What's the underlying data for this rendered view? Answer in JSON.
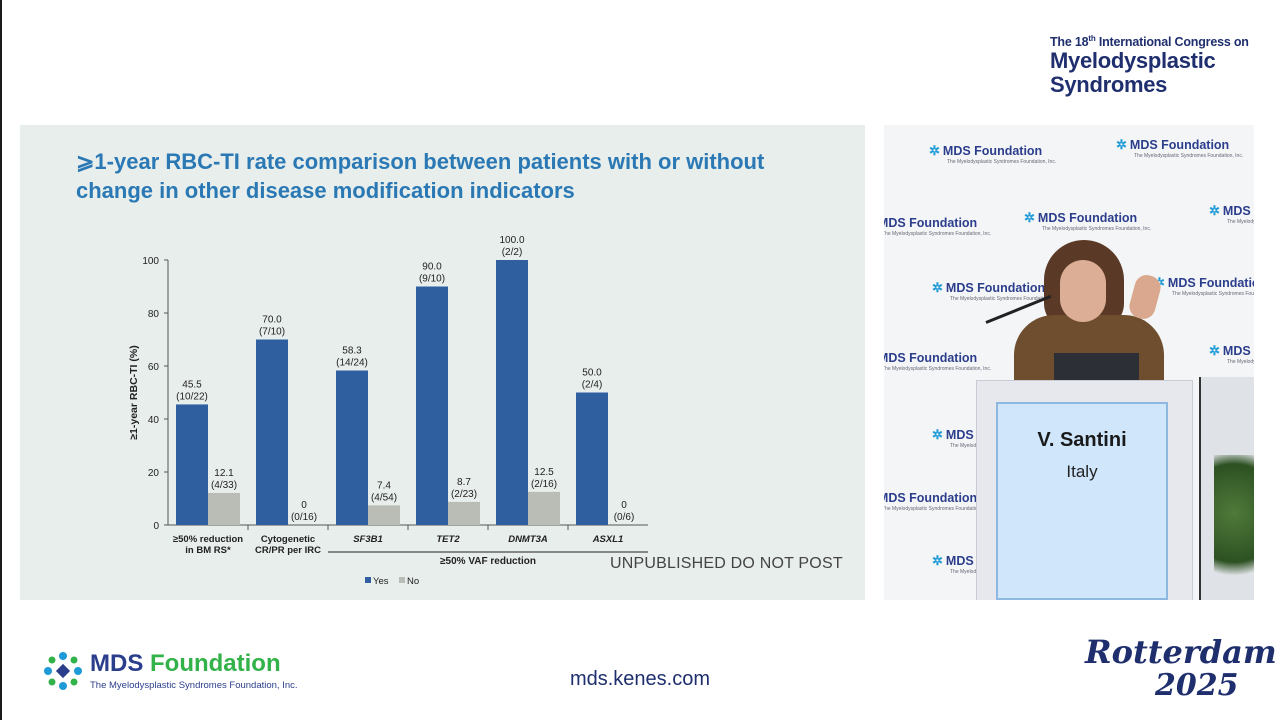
{
  "congress": {
    "line1_pre": "The 18",
    "line1_sup": "th",
    "line1_post": " International Congress on",
    "line2": "Myelodysplastic",
    "line3": "Syndromes"
  },
  "slide": {
    "title": "⩾1-year RBC-TI rate comparison between patients with or without change in other disease modification indicators",
    "watermark": "UNPUBLISHED DO NOT POST"
  },
  "chart_data": {
    "type": "bar",
    "ylabel": "≥1-year RBC-TI (%)",
    "ylim": [
      0,
      100
    ],
    "yticks": [
      0,
      20,
      40,
      60,
      80,
      100
    ],
    "categories": [
      "≥50% reduction\nin BM RS*",
      "Cytogenetic\nCR/PR per IRC",
      "SF3B1",
      "TET2",
      "DNMT3A",
      "ASXL1"
    ],
    "italic_categories": [
      false,
      false,
      true,
      true,
      true,
      true
    ],
    "group_label": "≥50% VAF reduction",
    "group_span": [
      2,
      5
    ],
    "legend_position": "bottom-center",
    "series": [
      {
        "name": "Yes",
        "color": "#2f5f9e",
        "values": [
          45.5,
          70.0,
          58.3,
          90.0,
          100.0,
          50.0
        ],
        "labels": [
          "45.5",
          "70.0",
          "58.3",
          "90.0",
          "100.0",
          "50.0"
        ],
        "fractions": [
          "(10/22)",
          "(7/10)",
          "(14/24)",
          "(9/10)",
          "(2/2)",
          "(2/4)"
        ]
      },
      {
        "name": "No",
        "color": "#b9bdb6",
        "values": [
          12.1,
          0,
          7.4,
          8.7,
          12.5,
          0
        ],
        "labels": [
          "12.1",
          "0",
          "7.4",
          "8.7",
          "12.5",
          "0"
        ],
        "fractions": [
          "(4/33)",
          "(0/16)",
          "(4/54)",
          "(2/23)",
          "(2/16)",
          "(0/6)"
        ]
      }
    ]
  },
  "stage": {
    "watermark_name": "MDS Foundation",
    "watermark_sub": "The Myelodysplastic Syndromes Foundation, Inc.",
    "speaker_name": "V. Santini",
    "speaker_country": "Italy"
  },
  "footer": {
    "logo_name_a": "MDS ",
    "logo_name_b": "Foundation",
    "logo_sub": "The Myelodysplastic Syndromes Foundation, Inc.",
    "url": "mds.kenes.com",
    "city": "Rotterdam",
    "year": "2025"
  }
}
